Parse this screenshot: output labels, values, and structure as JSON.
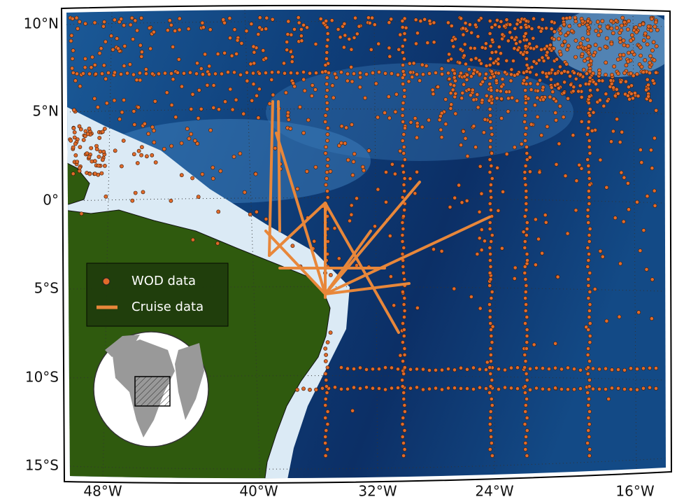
{
  "map": {
    "lat_labels": [
      "10°N",
      "5°N",
      "0°",
      "5°S",
      "10°S",
      "15°S"
    ],
    "lon_labels": [
      "48°W",
      "40°W",
      "32°W",
      "24°W",
      "16°W"
    ],
    "legend": [
      "WOD data",
      "Cruise data"
    ]
  }
}
